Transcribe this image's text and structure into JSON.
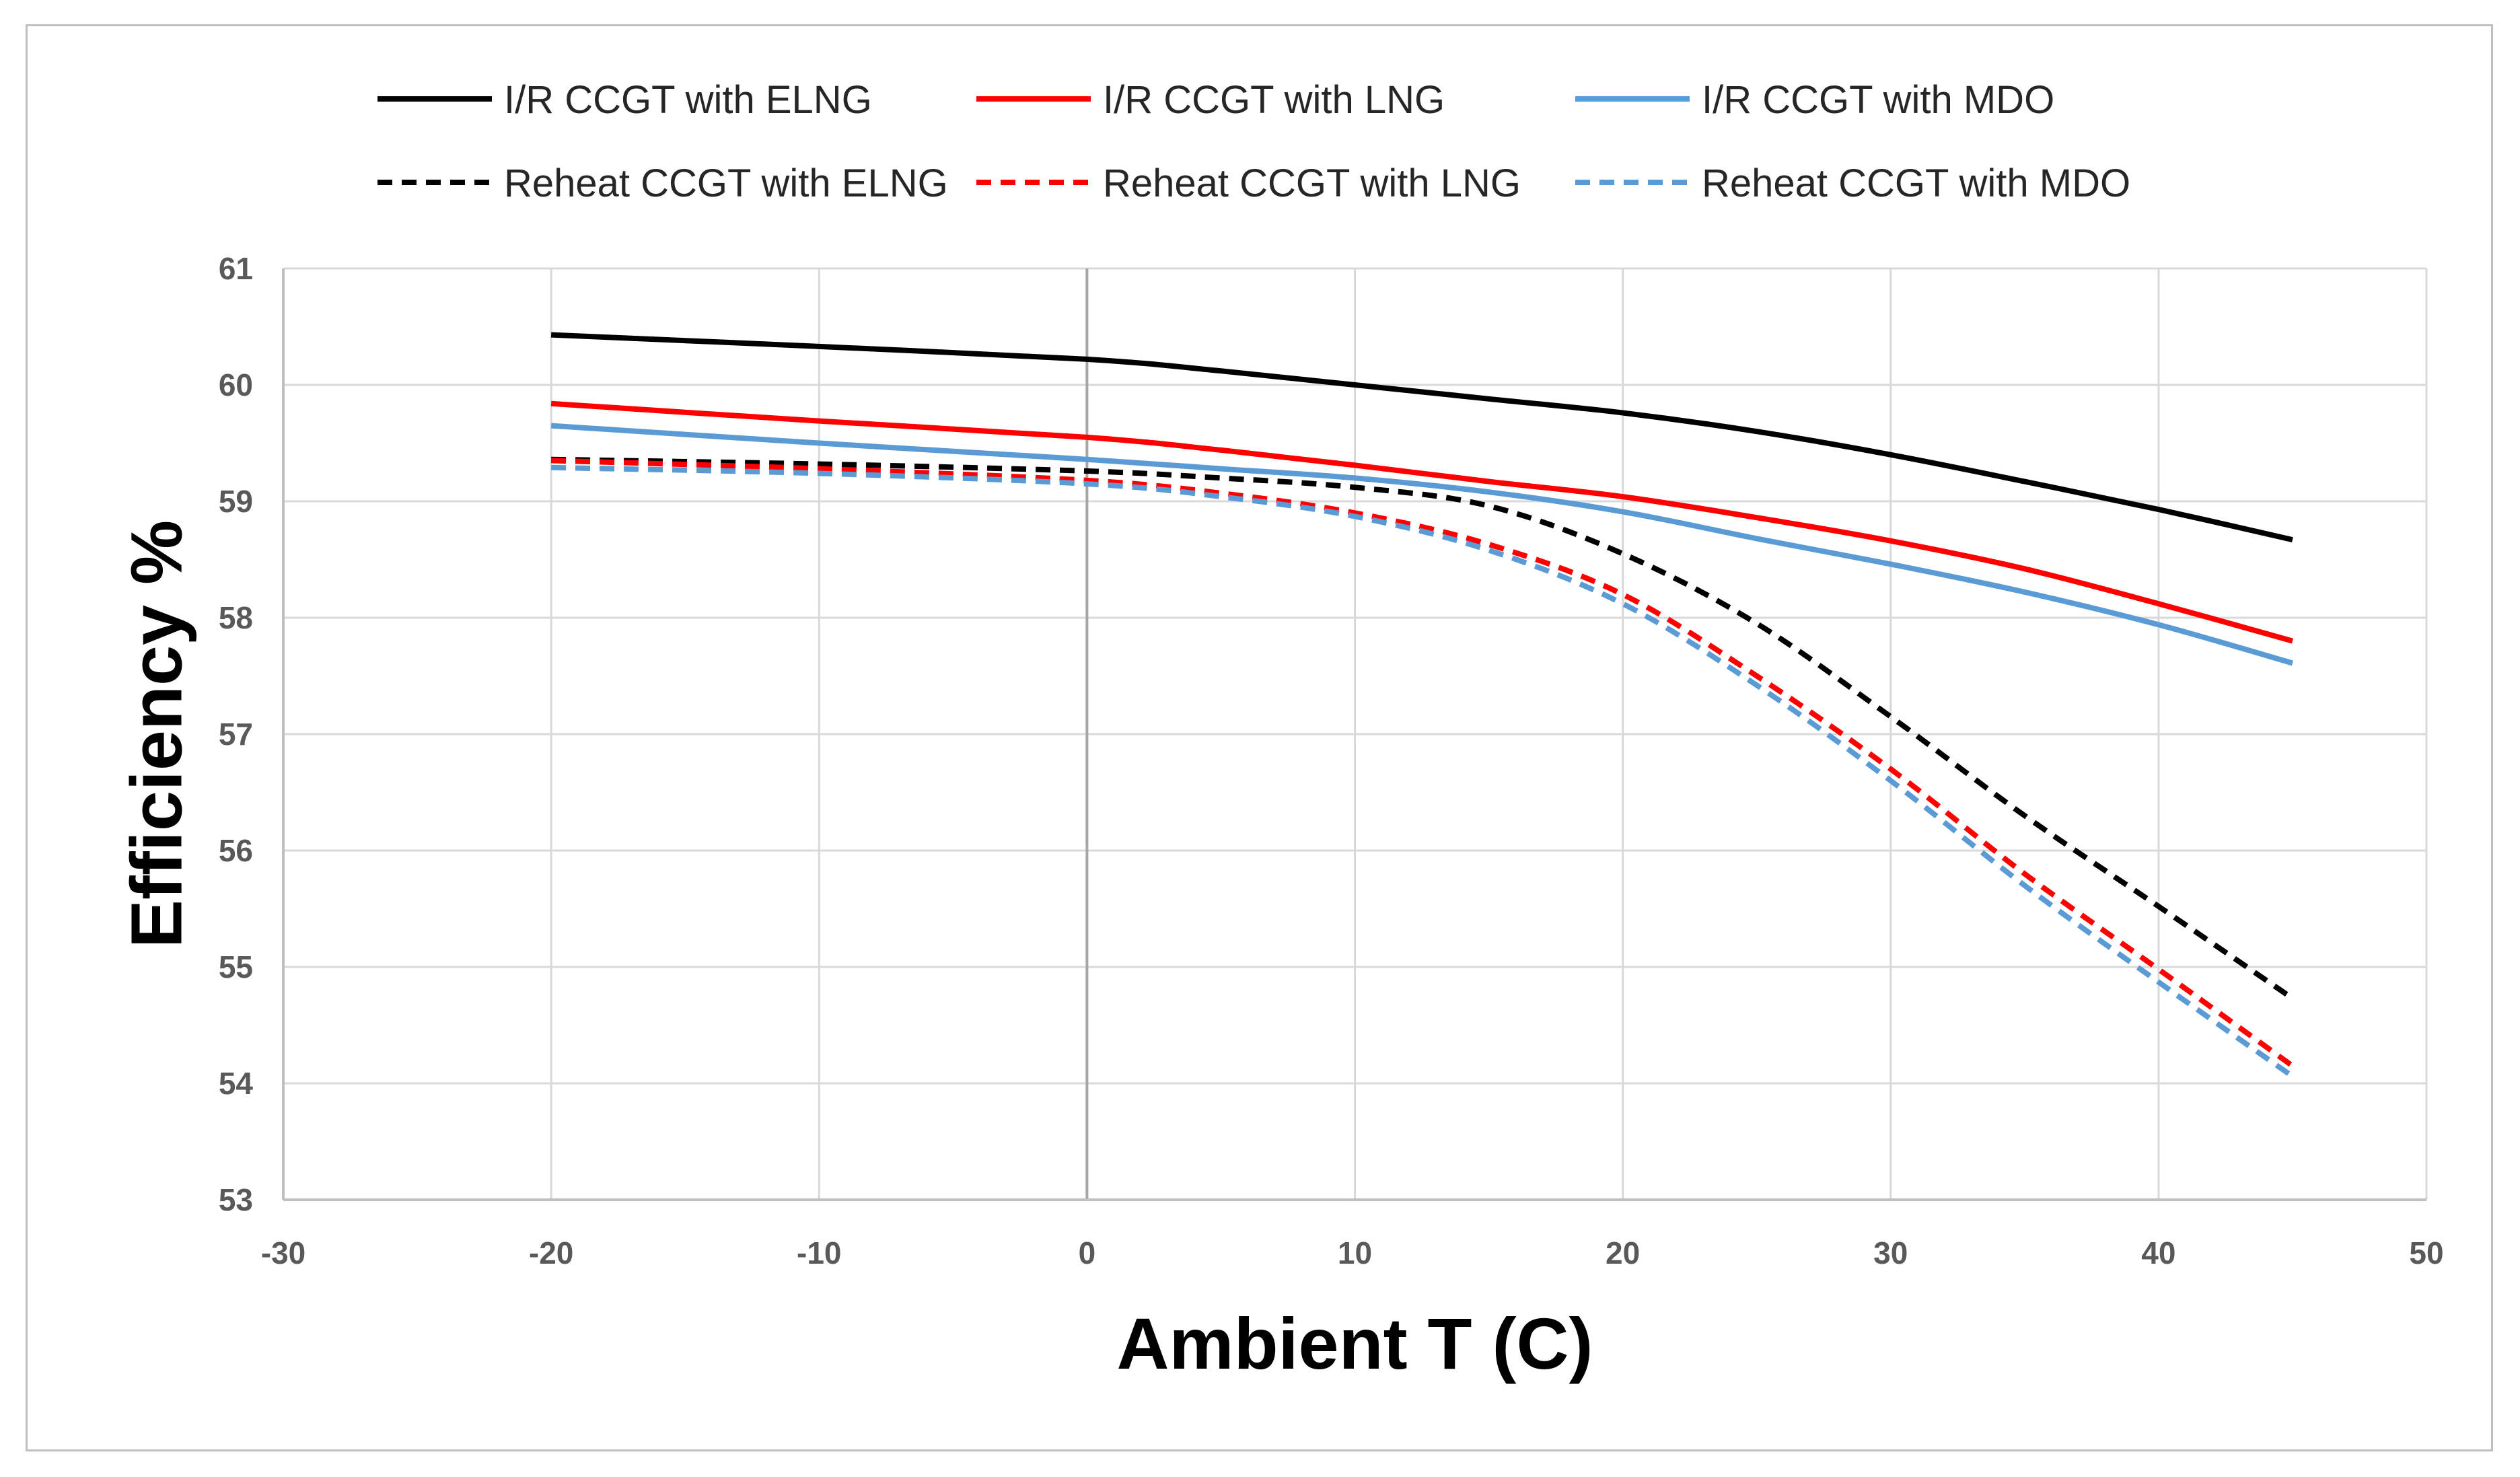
{
  "chart_data": {
    "type": "line",
    "xlabel": "Ambient T (C)",
    "ylabel": "Efficiency %",
    "xlim": [
      -30,
      50
    ],
    "ylim": [
      53,
      61
    ],
    "xticks": [
      -30,
      -20,
      -10,
      0,
      10,
      20,
      30,
      40,
      50
    ],
    "yticks": [
      53,
      54,
      55,
      56,
      57,
      58,
      59,
      60,
      61
    ],
    "grid": true,
    "legend": "top",
    "x": [
      -20,
      -10,
      0,
      5,
      10,
      15,
      20,
      25,
      30,
      35,
      40,
      45
    ],
    "series": [
      {
        "name": "I/R CCGT with ELNG",
        "color": "#000000",
        "dash": false,
        "values": [
          60.43,
          60.33,
          60.22,
          60.12,
          60.0,
          59.88,
          59.76,
          59.6,
          59.4,
          59.17,
          58.93,
          58.67
        ]
      },
      {
        "name": "I/R CCGT with LNG",
        "color": "#ff0000",
        "dash": false,
        "values": [
          59.84,
          59.69,
          59.55,
          59.44,
          59.31,
          59.17,
          59.04,
          58.86,
          58.66,
          58.42,
          58.12,
          57.8
        ]
      },
      {
        "name": "I/R CCGT with MDO",
        "color": "#5b9bd5",
        "dash": false,
        "values": [
          59.65,
          59.5,
          59.36,
          59.28,
          59.2,
          59.08,
          58.91,
          58.68,
          58.46,
          58.22,
          57.94,
          57.61
        ]
      },
      {
        "name": "Reheat CCGT with ELNG",
        "color": "#000000",
        "dash": true,
        "values": [
          59.36,
          59.32,
          59.26,
          59.2,
          59.12,
          58.96,
          58.55,
          57.95,
          57.15,
          56.3,
          55.52,
          54.73
        ]
      },
      {
        "name": "Reheat CCGT with LNG",
        "color": "#ff0000",
        "dash": true,
        "values": [
          59.35,
          59.28,
          59.18,
          59.07,
          58.9,
          58.63,
          58.2,
          57.5,
          56.7,
          55.8,
          54.98,
          54.15
        ]
      },
      {
        "name": "Reheat CCGT with MDO",
        "color": "#5b9bd5",
        "dash": true,
        "values": [
          59.29,
          59.24,
          59.15,
          59.04,
          58.87,
          58.58,
          58.12,
          57.42,
          56.6,
          55.7,
          54.87,
          54.06
        ]
      }
    ]
  }
}
